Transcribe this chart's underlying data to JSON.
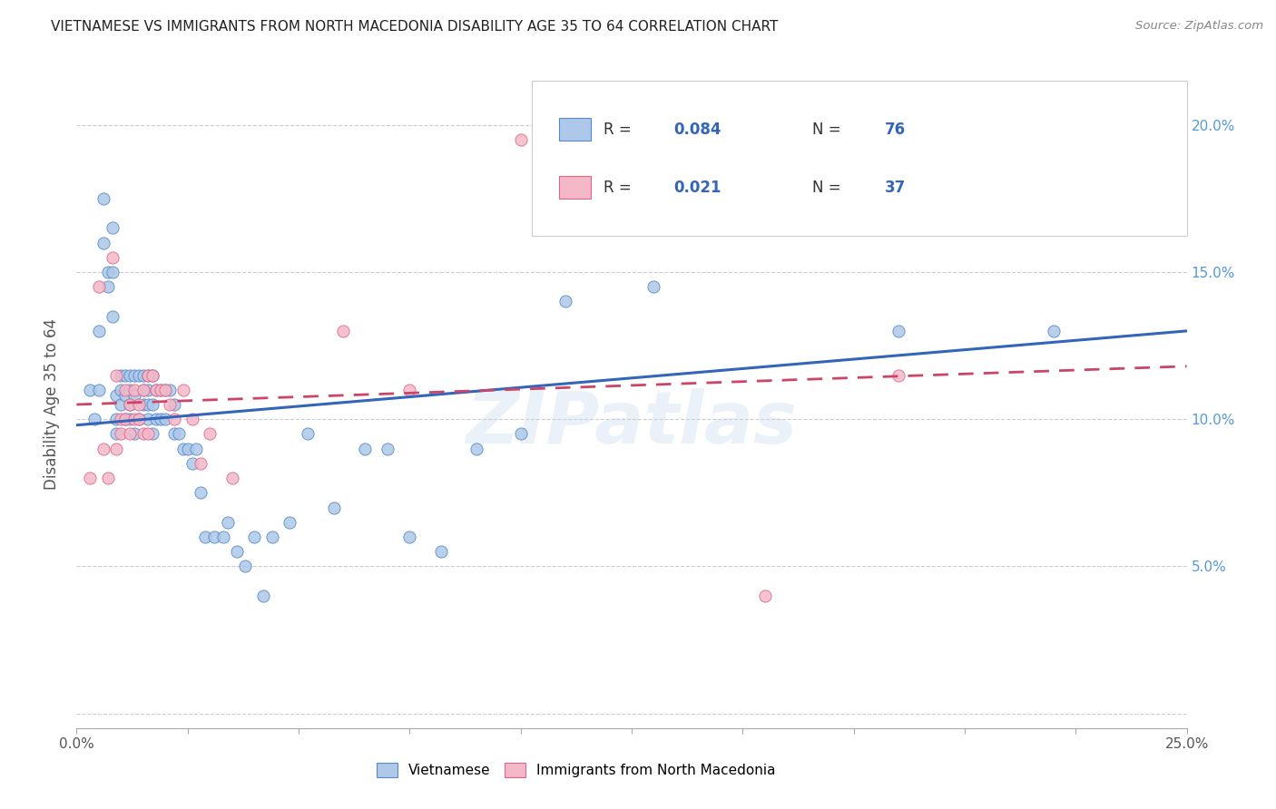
{
  "title": "VIETNAMESE VS IMMIGRANTS FROM NORTH MACEDONIA DISABILITY AGE 35 TO 64 CORRELATION CHART",
  "source": "Source: ZipAtlas.com",
  "ylabel": "Disability Age 35 to 64",
  "xlim": [
    0.0,
    0.25
  ],
  "ylim": [
    -0.005,
    0.215
  ],
  "xticks": [
    0.0,
    0.025,
    0.05,
    0.075,
    0.1,
    0.125,
    0.15,
    0.175,
    0.2,
    0.225,
    0.25
  ],
  "xtick_labels": [
    "0.0%",
    "",
    "",
    "",
    "",
    "",
    "",
    "",
    "",
    "",
    "25.0%"
  ],
  "yticks_right": [
    0.0,
    0.05,
    0.1,
    0.15,
    0.2
  ],
  "ytick_labels_right": [
    "",
    "5.0%",
    "10.0%",
    "15.0%",
    "20.0%"
  ],
  "legend_blue_label": "Vietnamese",
  "legend_pink_label": "Immigrants from North Macedonia",
  "blue_R": "0.084",
  "blue_N": "76",
  "pink_R": "0.021",
  "pink_N": "37",
  "blue_color": "#adc8e8",
  "pink_color": "#f4b8c8",
  "blue_edge_color": "#5588cc",
  "pink_edge_color": "#dd6688",
  "blue_line_color": "#3366bb",
  "pink_line_color": "#cc4466",
  "watermark": "ZIPatlas",
  "blue_points_x": [
    0.003,
    0.004,
    0.005,
    0.005,
    0.006,
    0.006,
    0.007,
    0.007,
    0.008,
    0.008,
    0.008,
    0.009,
    0.009,
    0.009,
    0.01,
    0.01,
    0.01,
    0.011,
    0.011,
    0.011,
    0.012,
    0.012,
    0.012,
    0.012,
    0.013,
    0.013,
    0.013,
    0.014,
    0.014,
    0.015,
    0.015,
    0.015,
    0.016,
    0.016,
    0.016,
    0.016,
    0.017,
    0.017,
    0.017,
    0.018,
    0.018,
    0.019,
    0.019,
    0.02,
    0.02,
    0.021,
    0.022,
    0.022,
    0.023,
    0.024,
    0.025,
    0.026,
    0.027,
    0.028,
    0.029,
    0.031,
    0.033,
    0.034,
    0.036,
    0.038,
    0.04,
    0.042,
    0.044,
    0.048,
    0.052,
    0.058,
    0.065,
    0.07,
    0.075,
    0.082,
    0.09,
    0.1,
    0.11,
    0.13,
    0.185,
    0.22
  ],
  "blue_points_y": [
    0.11,
    0.1,
    0.13,
    0.11,
    0.16,
    0.175,
    0.15,
    0.145,
    0.165,
    0.15,
    0.135,
    0.108,
    0.1,
    0.095,
    0.115,
    0.11,
    0.105,
    0.115,
    0.108,
    0.1,
    0.115,
    0.11,
    0.105,
    0.1,
    0.115,
    0.108,
    0.095,
    0.115,
    0.1,
    0.115,
    0.11,
    0.105,
    0.115,
    0.11,
    0.105,
    0.1,
    0.115,
    0.105,
    0.095,
    0.11,
    0.1,
    0.11,
    0.1,
    0.11,
    0.1,
    0.11,
    0.105,
    0.095,
    0.095,
    0.09,
    0.09,
    0.085,
    0.09,
    0.075,
    0.06,
    0.06,
    0.06,
    0.065,
    0.055,
    0.05,
    0.06,
    0.04,
    0.06,
    0.065,
    0.095,
    0.07,
    0.09,
    0.09,
    0.06,
    0.055,
    0.09,
    0.095,
    0.14,
    0.145,
    0.13,
    0.13
  ],
  "pink_points_x": [
    0.003,
    0.005,
    0.006,
    0.007,
    0.008,
    0.009,
    0.009,
    0.01,
    0.01,
    0.011,
    0.011,
    0.012,
    0.012,
    0.013,
    0.013,
    0.014,
    0.014,
    0.015,
    0.015,
    0.016,
    0.016,
    0.017,
    0.018,
    0.019,
    0.02,
    0.021,
    0.022,
    0.024,
    0.026,
    0.028,
    0.03,
    0.035,
    0.06,
    0.075,
    0.1,
    0.155,
    0.185
  ],
  "pink_points_y": [
    0.08,
    0.145,
    0.09,
    0.08,
    0.155,
    0.09,
    0.115,
    0.1,
    0.095,
    0.11,
    0.1,
    0.105,
    0.095,
    0.11,
    0.1,
    0.105,
    0.1,
    0.11,
    0.095,
    0.115,
    0.095,
    0.115,
    0.11,
    0.11,
    0.11,
    0.105,
    0.1,
    0.11,
    0.1,
    0.085,
    0.095,
    0.08,
    0.13,
    0.11,
    0.195,
    0.04,
    0.115
  ],
  "blue_trend_x": [
    0.0,
    0.25
  ],
  "blue_trend_y": [
    0.098,
    0.13
  ],
  "pink_trend_x": [
    0.0,
    0.25
  ],
  "pink_trend_y": [
    0.105,
    0.118
  ]
}
